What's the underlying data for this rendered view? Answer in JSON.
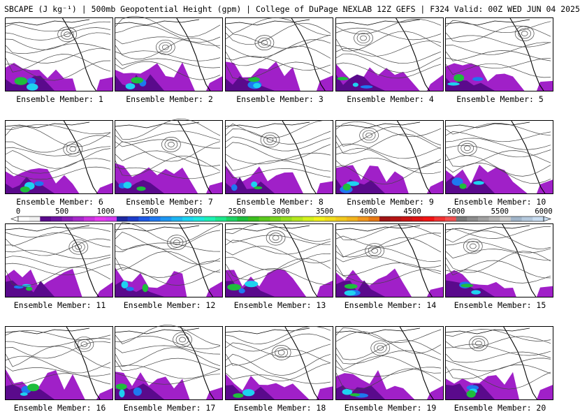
{
  "title": "SBCAPE (J kg⁻¹) | 500mb Geopotential Height (gpm) | College of DuPage NEXLAB 12Z GEFS | F324 Valid: 00Z WED JUN 04 2025",
  "member_label_prefix": "Ensemble Member: ",
  "members": [
    {
      "label": "Ensemble Member: 1"
    },
    {
      "label": "Ensemble Member: 2"
    },
    {
      "label": "Ensemble Member: 3"
    },
    {
      "label": "Ensemble Member: 4"
    },
    {
      "label": "Ensemble Member: 5"
    },
    {
      "label": "Ensemble Member: 6"
    },
    {
      "label": "Ensemble Member: 7"
    },
    {
      "label": "Ensemble Member: 8"
    },
    {
      "label": "Ensemble Member: 9"
    },
    {
      "label": "Ensemble Member: 10"
    },
    {
      "label": "Ensemble Member: 11"
    },
    {
      "label": "Ensemble Member: 12"
    },
    {
      "label": "Ensemble Member: 13"
    },
    {
      "label": "Ensemble Member: 14"
    },
    {
      "label": "Ensemble Member: 15"
    },
    {
      "label": "Ensemble Member: 16"
    },
    {
      "label": "Ensemble Member: 17"
    },
    {
      "label": "Ensemble Member: 18"
    },
    {
      "label": "Ensemble Member: 19"
    },
    {
      "label": "Ensemble Member: 20"
    }
  ],
  "colorbar": {
    "ticks": [
      "0",
      "500",
      "1000",
      "1500",
      "2000",
      "2500",
      "3000",
      "3500",
      "4000",
      "4500",
      "5000",
      "5500",
      "6000"
    ],
    "colors": [
      "#ffffff",
      "#f0f0f0",
      "#5a0a8c",
      "#6e14a0",
      "#8a1eb4",
      "#a528c8",
      "#c832dc",
      "#e63cf0",
      "#d23cf0",
      "#1e28a0",
      "#1e3cc8",
      "#1e5ae6",
      "#1e78f0",
      "#1e96f0",
      "#1eb4f0",
      "#1ed2f0",
      "#1ee6dc",
      "#1ef0b4",
      "#1ee68c",
      "#1ed264",
      "#1ebe3c",
      "#3cbe1e",
      "#5ac81e",
      "#78d21e",
      "#96dc1e",
      "#b4e61e",
      "#d2f01e",
      "#f0f01e",
      "#f0dc1e",
      "#f0c81e",
      "#f0b41e",
      "#f0961e",
      "#e67814",
      "#a01414",
      "#b41414",
      "#c81414",
      "#dc1414",
      "#f01414",
      "#f03232",
      "#f05050",
      "#787878",
      "#8c8c8c",
      "#a0a0a0",
      "#b4b4b4",
      "#c8c8c8",
      "#a0b4c8",
      "#b4c8dc",
      "#c8dcf0"
    ],
    "range": [
      0,
      6000
    ]
  }
}
